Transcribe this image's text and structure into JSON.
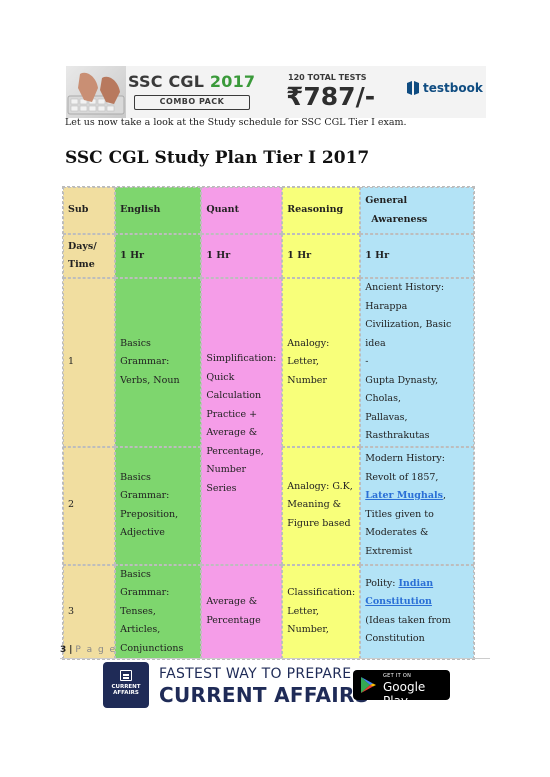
{
  "banner": {
    "title_prefix": "SSC CGL",
    "title_year": "2017",
    "combo": "COMBO PACK",
    "tests": "120 TOTAL TESTS",
    "price": "₹787/-",
    "brand": "testbook"
  },
  "intro": "Let us now take a look at the Study schedule for SSC CGL Tier I exam.",
  "heading": "SSC CGL Study Plan Tier I 2017",
  "table": {
    "header": {
      "sub": "Sub",
      "english": "English",
      "quant": "Quant",
      "reasoning": "Reasoning",
      "ga_line1": "General",
      "ga_line2": "Awareness"
    },
    "time_row": {
      "label_line1": "Days/",
      "label_line2": "Time",
      "english": "1 Hr",
      "quant": "1 Hr",
      "reasoning": "1 Hr",
      "ga": "1 Hr"
    },
    "quant_merged": [
      "Simplification:",
      "Quick",
      "Calculation",
      "Practice +",
      "Average &",
      "Percentage,",
      "Number Series"
    ],
    "rows": [
      {
        "day": "1",
        "english": [
          "Basics",
          "Grammar:",
          "Verbs, Noun"
        ],
        "reasoning": [
          "Analogy:",
          "Letter,",
          "Number"
        ],
        "ga": [
          "Ancient History:",
          "Harappa",
          "Civilization, Basic idea",
          "-",
          "Gupta Dynasty,",
          "Cholas,",
          "Pallavas,",
          "Rasthrakutas"
        ]
      },
      {
        "day": "2",
        "english": [
          "Basics",
          "Grammar:",
          "Preposition,",
          "Adjective"
        ],
        "reasoning": [
          "Analogy: G.K,",
          "Meaning &",
          "Figure based"
        ],
        "ga_line1": "Modern History:",
        "ga_line2": "Revolt of 1857,",
        "ga_link": "Later Mughals",
        "ga_link_suffix": ",",
        "ga_line4": "Titles given to",
        "ga_line5": "Moderates &",
        "ga_line6": "Extremist"
      },
      {
        "day": "3",
        "english": [
          "Basics",
          "Grammar:",
          "Tenses, Articles,",
          "Conjunctions"
        ],
        "quant": [
          "Average &",
          "Percentage"
        ],
        "reasoning": [
          "Classification:",
          "Letter,",
          "Number,"
        ],
        "ga_prefix": "Polity: ",
        "ga_link1": "Indian",
        "ga_link2": "Constitution",
        "ga_line3": "(Ideas taken from",
        "ga_line4": "Constitution"
      }
    ]
  },
  "footer": {
    "page_no": "3",
    "sep": "|",
    "page_word": "P a g e"
  },
  "ad": {
    "box_line1": "CURRENT",
    "box_line2": "AFFAIRS",
    "line1": "FASTEST WAY TO PREPARE",
    "line2": "CURRENT AFFAIRS",
    "store_small": "GET IT ON",
    "store_big": "Google Play"
  },
  "colors": {
    "sub": "#f1dea0",
    "english": "#7ed66e",
    "quant": "#f59de8",
    "reasoning": "#f8ff7a",
    "ga": "#b3e3f6",
    "link": "#2a6fd6"
  }
}
